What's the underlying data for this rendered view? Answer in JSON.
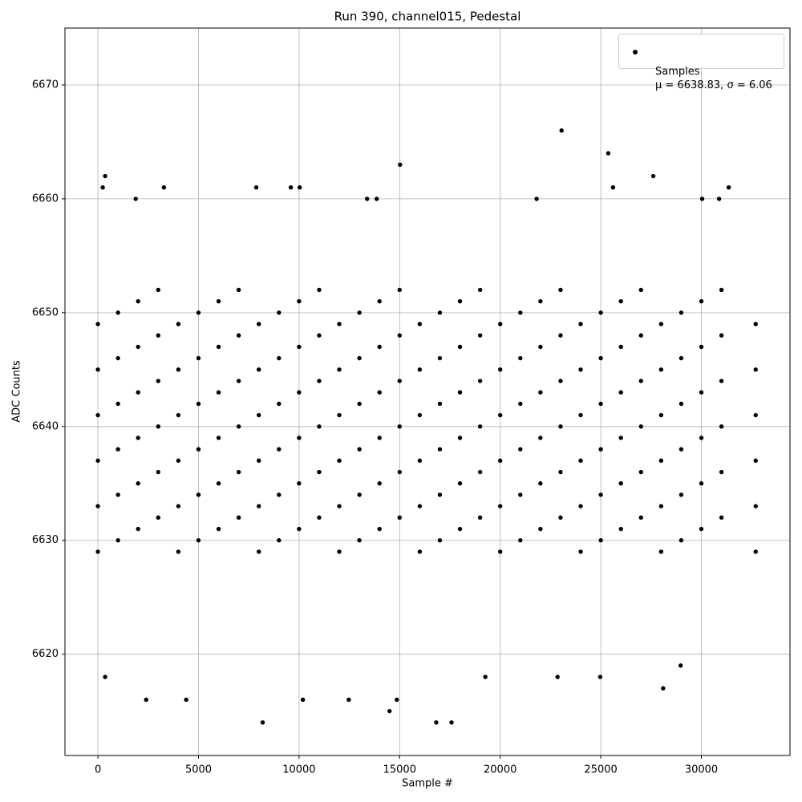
{
  "chart_data": {
    "type": "scatter",
    "title": "Run 390, channel015, Pedestal",
    "xlabel": "Sample #",
    "ylabel": "ADC Counts",
    "xlim": [
      -1638,
      34405
    ],
    "ylim": [
      6611.1,
      6675.0
    ],
    "xticks": [
      0,
      5000,
      10000,
      15000,
      20000,
      25000,
      30000
    ],
    "yticks": [
      6620,
      6630,
      6640,
      6650,
      6660,
      6670
    ],
    "grid": true,
    "legend": "upper right",
    "series": [
      {
        "name": "Samples\nμ = 6638.83, σ = 6.06",
        "color": "#000000",
        "x": [
          0,
          0,
          0,
          0,
          0,
          0,
          1000,
          1000,
          1000,
          1000,
          1000,
          1000,
          2000,
          2000,
          2000,
          2000,
          2000,
          2000,
          3000,
          3000,
          3000,
          3000,
          3000,
          3000,
          4000,
          4000,
          4000,
          4000,
          4000,
          4000,
          5000,
          5000,
          5000,
          5000,
          5000,
          5000,
          6000,
          6000,
          6000,
          6000,
          6000,
          6000,
          7000,
          7000,
          7000,
          7000,
          7000,
          7000,
          8000,
          8000,
          8000,
          8000,
          8000,
          8000,
          9000,
          9000,
          9000,
          9000,
          9000,
          9000,
          10000,
          10000,
          10000,
          10000,
          10000,
          10000,
          11000,
          11000,
          11000,
          11000,
          11000,
          11000,
          12000,
          12000,
          12000,
          12000,
          12000,
          12000,
          13000,
          13000,
          13000,
          13000,
          13000,
          13000,
          14000,
          14000,
          14000,
          14000,
          14000,
          14000,
          15000,
          15000,
          15000,
          15000,
          15000,
          15000,
          16000,
          16000,
          16000,
          16000,
          16000,
          16000,
          17000,
          17000,
          17000,
          17000,
          17000,
          17000,
          18000,
          18000,
          18000,
          18000,
          18000,
          18000,
          19000,
          19000,
          19000,
          19000,
          19000,
          19000,
          20000,
          20000,
          20000,
          20000,
          20000,
          20000,
          21000,
          21000,
          21000,
          21000,
          21000,
          21000,
          22000,
          22000,
          22000,
          22000,
          22000,
          22000,
          23000,
          23000,
          23000,
          23000,
          23000,
          23000,
          24000,
          24000,
          24000,
          24000,
          24000,
          24000,
          25000,
          25000,
          25000,
          25000,
          25000,
          25000,
          26000,
          26000,
          26000,
          26000,
          26000,
          26000,
          27000,
          27000,
          27000,
          27000,
          27000,
          27000,
          28000,
          28000,
          28000,
          28000,
          28000,
          28000,
          29000,
          29000,
          29000,
          29000,
          29000,
          29000,
          30000,
          30000,
          30000,
          30000,
          30000,
          30000,
          31000,
          31000,
          31000,
          31000,
          31000,
          31000,
          32700,
          32700,
          32700,
          32700,
          32700,
          32700,
          240,
          360,
          360,
          2400,
          15020,
          14500,
          16820,
          17580,
          8190,
          23050,
          25370,
          27610,
          28100,
          28970,
          10190,
          12470,
          4390,
          14860,
          24970,
          22850,
          19260,
          3280,
          7870,
          10030,
          9590,
          31360,
          1880,
          13380,
          13860,
          21810,
          30040,
          30880,
          25610
        ],
        "values": [
          6629,
          6633,
          6637,
          6641,
          6645,
          6649,
          6630,
          6634,
          6638,
          6642,
          6646,
          6650,
          6631,
          6635,
          6639,
          6643,
          6647,
          6651,
          6632,
          6636,
          6640,
          6644,
          6648,
          6652,
          6629,
          6633,
          6637,
          6641,
          6645,
          6649,
          6630,
          6634,
          6638,
          6642,
          6646,
          6650,
          6631,
          6635,
          6639,
          6643,
          6647,
          6651,
          6632,
          6636,
          6640,
          6644,
          6648,
          6652,
          6629,
          6633,
          6637,
          6641,
          6645,
          6649,
          6630,
          6634,
          6638,
          6642,
          6646,
          6650,
          6631,
          6635,
          6639,
          6643,
          6647,
          6651,
          6632,
          6636,
          6640,
          6644,
          6648,
          6652,
          6629,
          6633,
          6637,
          6641,
          6645,
          6649,
          6630,
          6634,
          6638,
          6642,
          6646,
          6650,
          6631,
          6635,
          6639,
          6643,
          6647,
          6651,
          6632,
          6636,
          6640,
          6644,
          6648,
          6652,
          6629,
          6633,
          6637,
          6641,
          6645,
          6649,
          6630,
          6634,
          6638,
          6642,
          6646,
          6650,
          6631,
          6635,
          6639,
          6643,
          6647,
          6651,
          6632,
          6636,
          6640,
          6644,
          6648,
          6652,
          6629,
          6633,
          6637,
          6641,
          6645,
          6649,
          6630,
          6634,
          6638,
          6642,
          6646,
          6650,
          6631,
          6635,
          6639,
          6643,
          6647,
          6651,
          6632,
          6636,
          6640,
          6644,
          6648,
          6652,
          6629,
          6633,
          6637,
          6641,
          6645,
          6649,
          6630,
          6634,
          6638,
          6642,
          6646,
          6650,
          6631,
          6635,
          6639,
          6643,
          6647,
          6651,
          6632,
          6636,
          6640,
          6644,
          6648,
          6652,
          6629,
          6633,
          6637,
          6641,
          6645,
          6649,
          6630,
          6634,
          6638,
          6642,
          6646,
          6650,
          6631,
          6635,
          6639,
          6643,
          6647,
          6651,
          6632,
          6636,
          6640,
          6644,
          6648,
          6652,
          6629,
          6633,
          6637,
          6641,
          6645,
          6649,
          6661,
          6618,
          6662,
          6616,
          6663,
          6615,
          6614,
          6614,
          6614,
          6666,
          6664,
          6662,
          6617,
          6619,
          6616,
          6616,
          6616,
          6616,
          6618,
          6618,
          6618,
          6661,
          6661,
          6661,
          6661,
          6661,
          6660,
          6660,
          6660,
          6660,
          6660,
          6660,
          6661
        ]
      }
    ]
  }
}
